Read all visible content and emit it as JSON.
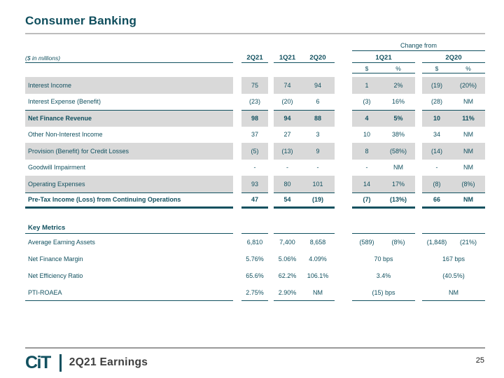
{
  "slide": {
    "title": "Consumer Banking",
    "page_number": "25",
    "footer": {
      "logo_text": "CiT",
      "label": "2Q21 Earnings"
    }
  },
  "colors": {
    "accent_teal": "#11505f",
    "row_shade": "#d9d9d9",
    "rule_gray": "#bcbcbc"
  },
  "table": {
    "units_note": "($ in millions)",
    "quarters": [
      "2Q21",
      "1Q21",
      "2Q20"
    ],
    "change_header": "Change from",
    "change_groups": [
      "1Q21",
      "2Q20"
    ],
    "sub_headers": [
      "$",
      "%",
      "$",
      "%"
    ],
    "rows": [
      {
        "label": "Interest Income",
        "q": [
          "75",
          "74",
          "94"
        ],
        "c1": [
          "1",
          "2%"
        ],
        "c2": [
          "(19)",
          "(20%)"
        ]
      },
      {
        "label": "Interest Expense (Benefit)",
        "q": [
          "(23)",
          "(20)",
          "6"
        ],
        "c1": [
          "(3)",
          "16%"
        ],
        "c2": [
          "(28)",
          "NM"
        ]
      },
      {
        "label": "Net Finance Revenue",
        "q": [
          "98",
          "94",
          "88"
        ],
        "c1": [
          "4",
          "5%"
        ],
        "c2": [
          "10",
          "11%"
        ]
      },
      {
        "label": "Other Non-Interest Income",
        "q": [
          "37",
          "27",
          "3"
        ],
        "c1": [
          "10",
          "38%"
        ],
        "c2": [
          "34",
          "NM"
        ]
      },
      {
        "label": "Provision (Benefit) for Credit Losses",
        "q": [
          "(5)",
          "(13)",
          "9"
        ],
        "c1": [
          "8",
          "(58%)"
        ],
        "c2": [
          "(14)",
          "NM"
        ]
      },
      {
        "label": "Goodwill Impairment",
        "q": [
          "-",
          "-",
          "-"
        ],
        "c1": [
          "-",
          "NM"
        ],
        "c2": [
          "-",
          "NM"
        ]
      },
      {
        "label": "Operating Expenses",
        "q": [
          "93",
          "80",
          "101"
        ],
        "c1": [
          "14",
          "17%"
        ],
        "c2": [
          "(8)",
          "(8%)"
        ]
      },
      {
        "label": "Pre-Tax Income (Loss) from Continuing Operations",
        "q": [
          "47",
          "54",
          "(19)"
        ],
        "c1": [
          "(7)",
          "(13%)"
        ],
        "c2": [
          "66",
          "NM"
        ]
      }
    ]
  },
  "key_metrics": {
    "title": "Key Metrics",
    "rows": [
      {
        "label": "Average Earning Assets",
        "q": [
          "6,810",
          "7,400",
          "8,658"
        ],
        "c1": [
          "(589)",
          "(8%)"
        ],
        "c2": [
          "(1,848)",
          "(21%)"
        ]
      },
      {
        "label": "Net Finance Margin",
        "q": [
          "5.76%",
          "5.06%",
          "4.09%"
        ],
        "c1span": "70 bps",
        "c2span": "167 bps"
      },
      {
        "label": "Net Efficiency Ratio",
        "q": [
          "65.6%",
          "62.2%",
          "106.1%"
        ],
        "c1span": "3.4%",
        "c2span": "(40.5%)"
      },
      {
        "label": "PTI-ROAEA",
        "q": [
          "2.75%",
          "2.90%",
          "NM"
        ],
        "c1span": "(15) bps",
        "c2span": "NM"
      }
    ]
  }
}
